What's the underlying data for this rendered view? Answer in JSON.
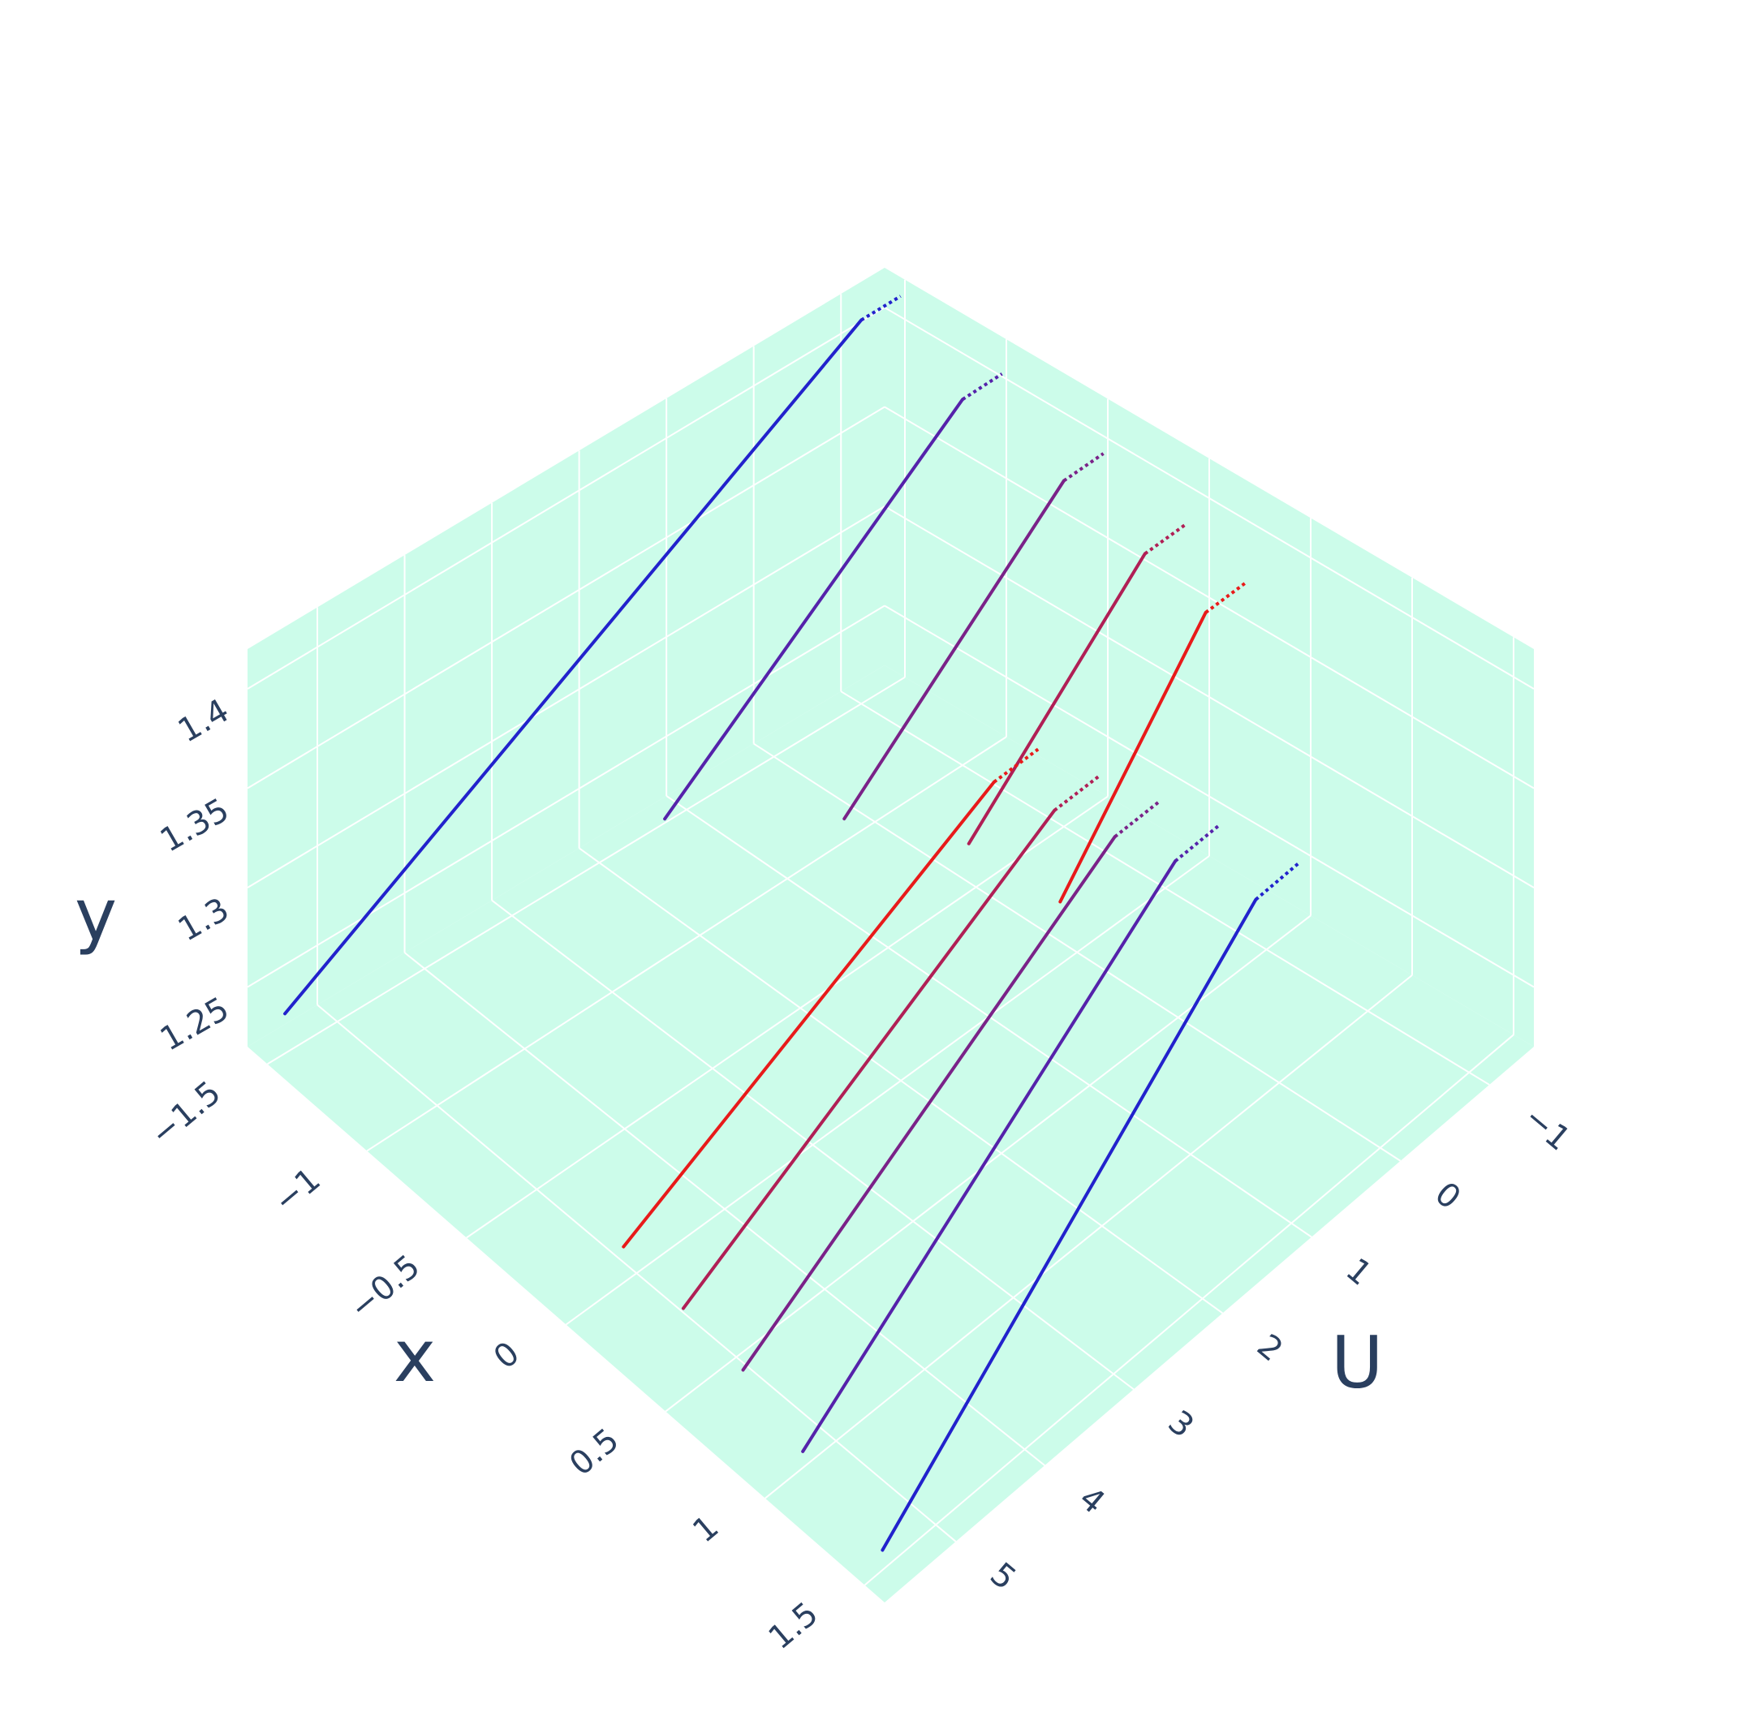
{
  "chart_data": {
    "type": "line3d",
    "axes": {
      "x": {
        "title": "x",
        "range": [
          -1.6,
          1.6
        ],
        "ticks": [
          -1.5,
          -1,
          -0.5,
          0,
          0.5,
          1,
          1.5
        ],
        "tick_labels": [
          "−1.5",
          "−1",
          "−0.5",
          "0",
          "0.5",
          "1",
          "1.5"
        ]
      },
      "u": {
        "title": "U",
        "range": [
          -1.5,
          5.8
        ],
        "ticks": [
          -1,
          0,
          1,
          2,
          3,
          4,
          5
        ],
        "tick_labels": [
          "−1",
          "0",
          "1",
          "2",
          "3",
          "4",
          "5"
        ]
      },
      "y": {
        "title": "y",
        "range": [
          1.22,
          1.42
        ],
        "ticks": [
          1.25,
          1.3,
          1.35,
          1.4
        ],
        "tick_labels": [
          "1.25",
          "1.3",
          "1.35",
          "1.4"
        ]
      }
    },
    "background_color": "#ccfcea",
    "grid": true,
    "legend": "none",
    "series": [
      {
        "x": -1.5,
        "u_start": 5.6,
        "u_kink": -1.0,
        "u_end": -1.45,
        "y_start": 1.24,
        "y_kink": 1.413,
        "y_end": 1.413,
        "color": "#2222cc"
      },
      {
        "x": -1.0,
        "u_start": 2.4,
        "u_kink": -1.0,
        "u_end": -1.45,
        "y_start": 1.29,
        "y_kink": 1.404,
        "y_end": 1.404,
        "color": "#5522aa"
      },
      {
        "x": -0.5,
        "u_start": 1.5,
        "u_kink": -1.0,
        "u_end": -1.45,
        "y_start": 1.3,
        "y_kink": 1.394,
        "y_end": 1.394,
        "color": "#7a2288"
      },
      {
        "x": -0.1,
        "u_start": 1.0,
        "u_kink": -1.0,
        "u_end": -1.45,
        "y_start": 1.3,
        "y_kink": 1.382,
        "y_end": 1.382,
        "color": "#b01f55"
      },
      {
        "x": 0.2,
        "u_start": 0.65,
        "u_kink": -1.0,
        "u_end": -1.45,
        "y_start": 1.28,
        "y_kink": 1.371,
        "y_end": 1.371,
        "color": "#e81a1a"
      },
      {
        "x": 0.2,
        "u_start": 5.6,
        "u_kink": 1.4,
        "u_end": 0.9,
        "y_start": 1.27,
        "y_kink": 1.365,
        "y_end": 1.365,
        "color": "#e81a1a"
      },
      {
        "x": 0.5,
        "u_start": 5.6,
        "u_kink": 1.4,
        "u_end": 0.9,
        "y_start": 1.265,
        "y_kink": 1.372,
        "y_end": 1.372,
        "color": "#b01f55"
      },
      {
        "x": 0.8,
        "u_start": 5.6,
        "u_kink": 1.4,
        "u_end": 0.9,
        "y_start": 1.26,
        "y_kink": 1.38,
        "y_end": 1.38,
        "color": "#7a2288"
      },
      {
        "x": 1.1,
        "u_start": 5.6,
        "u_kink": 1.4,
        "u_end": 0.9,
        "y_start": 1.245,
        "y_kink": 1.389,
        "y_end": 1.389,
        "color": "#5522aa"
      },
      {
        "x": 1.5,
        "u_start": 5.6,
        "u_kink": 1.4,
        "u_end": 0.9,
        "y_start": 1.23,
        "y_kink": 1.398,
        "y_end": 1.398,
        "color": "#2222cc"
      }
    ]
  }
}
